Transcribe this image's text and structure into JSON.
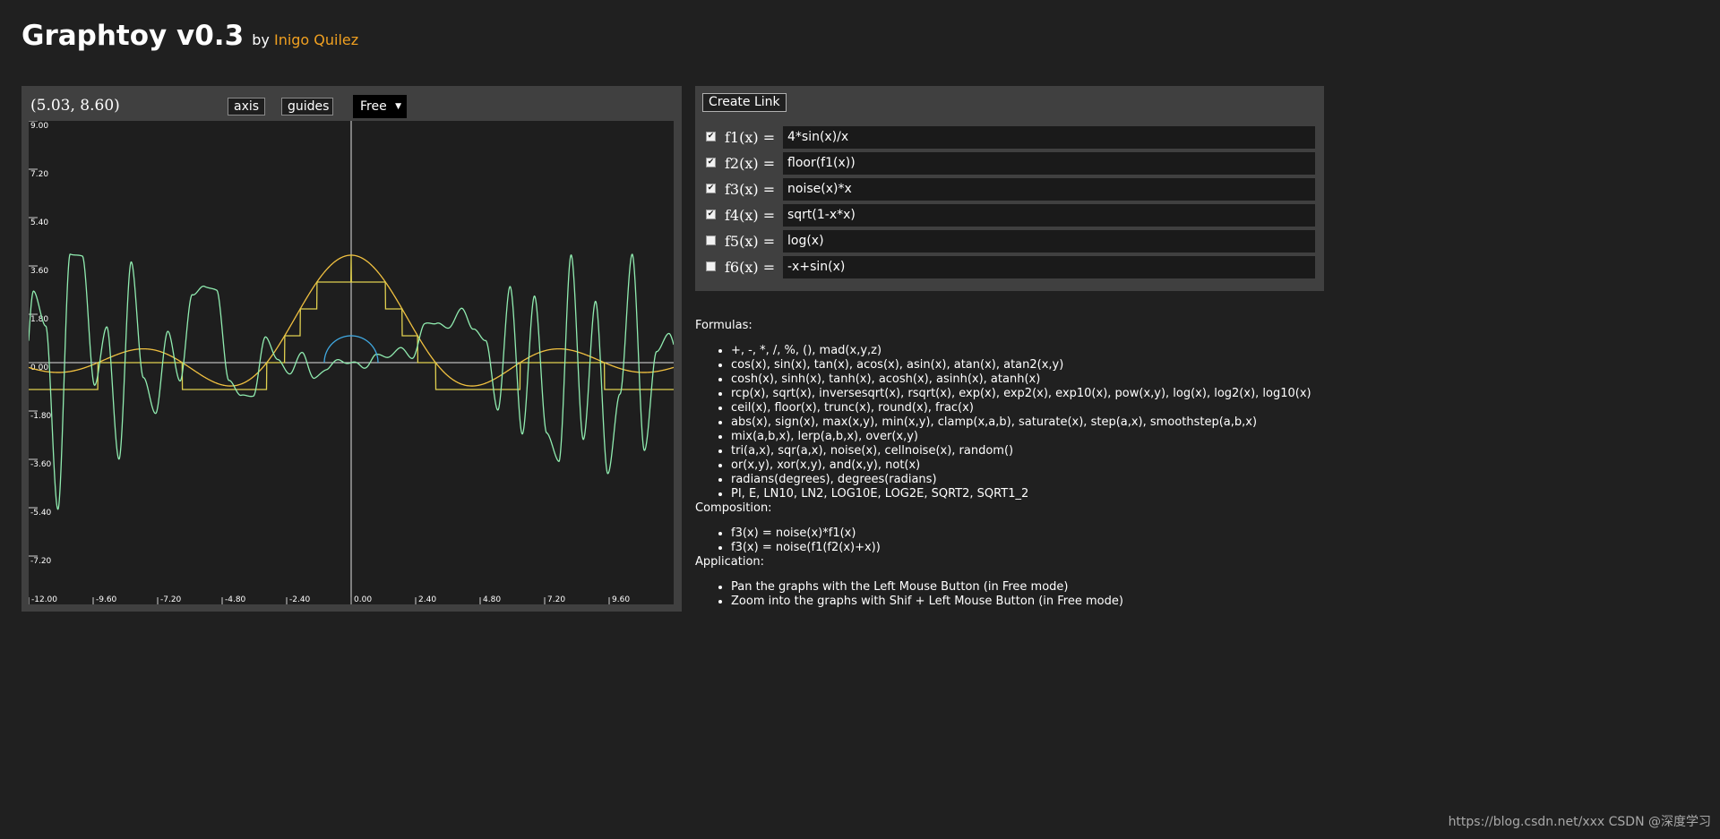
{
  "header": {
    "title": "Graphtoy v0.3",
    "by": "by",
    "author": "Inigo Quilez"
  },
  "graph": {
    "coords": "(5.03, 8.60)",
    "axis_label": "axis",
    "guides_label": "guides",
    "mode": "Free",
    "x_ticks": [
      "-12.00",
      "-9.60",
      "-7.20",
      "-4.80",
      "-2.40",
      "0.00",
      "2.40",
      "4.80",
      "7.20",
      "9.60"
    ],
    "y_ticks": [
      "9.00",
      "7.20",
      "5.40",
      "3.60",
      "1.80",
      "0.00",
      "-1.80",
      "-3.60",
      "-5.40",
      "-7.20"
    ],
    "colors": {
      "f1": "#f0c040",
      "f2": "#e0d050",
      "f3": "#90ecb0",
      "f4": "#40a8e0",
      "axis": "#e0e0e0"
    }
  },
  "chart_data": {
    "type": "line",
    "xlim": [
      -12.0,
      12.0
    ],
    "ylim": [
      -9.0,
      9.0
    ],
    "grid": false,
    "series": [
      {
        "name": "f1(x) = 4*sin(x)/x",
        "x": [
          -12,
          -9,
          -6,
          -3,
          -1.5,
          0,
          1.5,
          3,
          6,
          9,
          12
        ],
        "y": [
          0.18,
          0.18,
          0.19,
          0.19,
          2.66,
          4.0,
          2.66,
          0.19,
          0.19,
          0.18,
          0.18
        ]
      },
      {
        "name": "f2(x) = floor(f1(x))",
        "x": [
          -12,
          -9,
          -6,
          -3,
          -1.5,
          0,
          1.5,
          3,
          6,
          9,
          12
        ],
        "y": [
          0,
          0,
          0,
          0,
          2,
          3,
          2,
          0,
          0,
          0,
          0
        ]
      },
      {
        "name": "f3(x) = noise(x)*x",
        "x": [
          -12,
          -9,
          -6,
          -3,
          0,
          3,
          6,
          9,
          12
        ],
        "y": [
          -2.1,
          -3.0,
          1.4,
          0.5,
          0.0,
          1.3,
          -1.2,
          1.6,
          3.8
        ]
      },
      {
        "name": "f4(x) = sqrt(1-x*x)",
        "x": [
          -1,
          -0.5,
          0,
          0.5,
          1
        ],
        "y": [
          0,
          0.87,
          1,
          0.87,
          0
        ]
      }
    ]
  },
  "functions": {
    "create_link": "Create Link",
    "items": [
      {
        "label": "f1(x) =",
        "value": "4*sin(x)/x",
        "checked": true
      },
      {
        "label": "f2(x) =",
        "value": "floor(f1(x))",
        "checked": true
      },
      {
        "label": "f3(x) =",
        "value": "noise(x)*x",
        "checked": true
      },
      {
        "label": "f4(x) =",
        "value": "sqrt(1-x*x)",
        "checked": true
      },
      {
        "label": "f5(x) =",
        "value": "log(x)",
        "checked": false
      },
      {
        "label": "f6(x) =",
        "value": "-x+sin(x)",
        "checked": false
      }
    ]
  },
  "docs": {
    "formulas_title": "Formulas:",
    "formulas": [
      "+, -, *, /, %, (), mad(x,y,z)",
      "cos(x), sin(x), tan(x), acos(x), asin(x), atan(x), atan2(x,y)",
      "cosh(x), sinh(x), tanh(x), acosh(x), asinh(x), atanh(x)",
      "rcp(x), sqrt(x), inversesqrt(x), rsqrt(x), exp(x), exp2(x), exp10(x), pow(x,y), log(x), log2(x), log10(x)",
      "ceil(x), floor(x), trunc(x), round(x), frac(x)",
      "abs(x), sign(x), max(x,y), min(x,y), clamp(x,a,b), saturate(x), step(a,x), smoothstep(a,b,x)",
      "mix(a,b,x), lerp(a,b,x), over(x,y)",
      "tri(a,x), sqr(a,x), noise(x), cellnoise(x), random()",
      "or(x,y), xor(x,y), and(x,y), not(x)",
      "radians(degrees), degrees(radians)",
      "PI, E, LN10, LN2, LOG10E, LOG2E, SQRT2, SQRT1_2"
    ],
    "composition_title": "Composition:",
    "composition": [
      "f3(x) = noise(x)*f1(x)",
      "f3(x) = noise(f1(f2(x)+x))"
    ],
    "application_title": "Application:",
    "application": [
      "Pan the graphs with the Left Mouse Button (in Free mode)",
      "Zoom into the graphs with Shif + Left Mouse Button (in Free mode)"
    ]
  },
  "watermark": "https://blog.csdn.net/xxx  CSDN @深度学习"
}
